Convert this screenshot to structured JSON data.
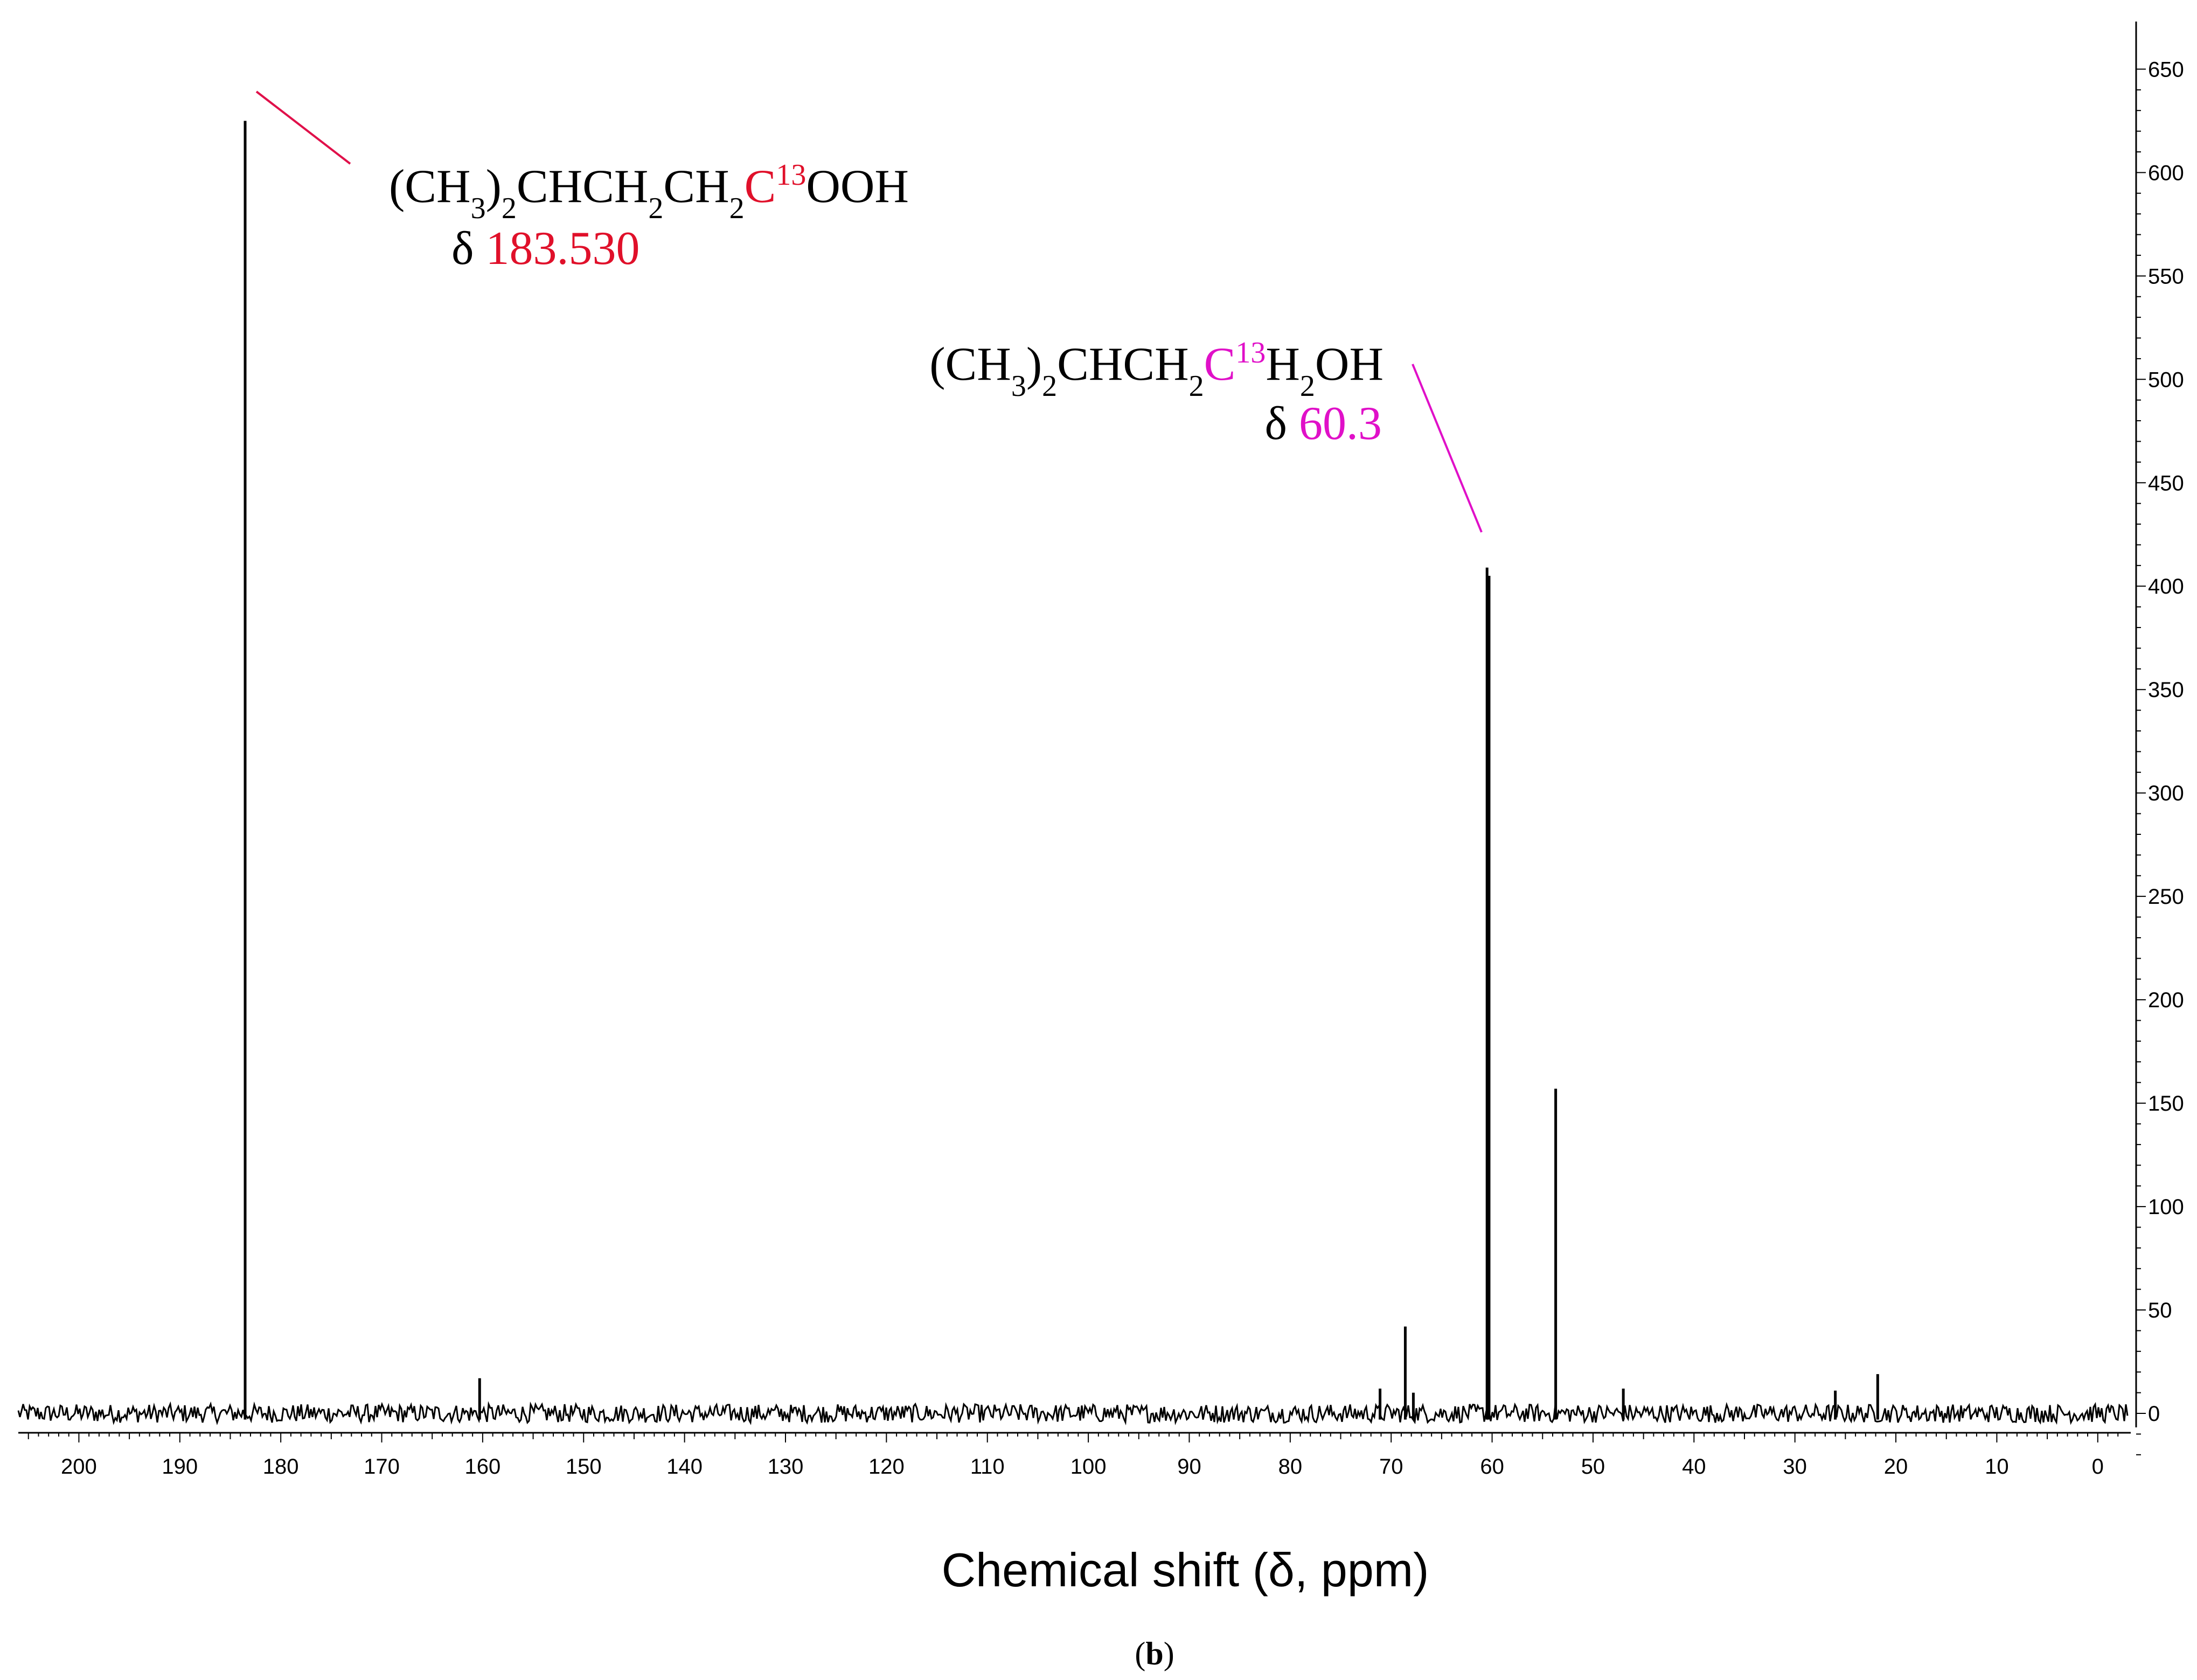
{
  "chart_data": {
    "type": "line",
    "xlabel": "Chemical shift (δ, ppm)",
    "ylabel": "",
    "xlim": [
      206,
      -3
    ],
    "ylim": [
      -25,
      660
    ],
    "x_ticks": [
      200,
      190,
      180,
      170,
      160,
      150,
      140,
      130,
      120,
      110,
      100,
      90,
      80,
      70,
      60,
      50,
      40,
      30,
      20,
      10,
      0
    ],
    "y_ticks": [
      650,
      600,
      550,
      500,
      450,
      400,
      350,
      300,
      250,
      200,
      150,
      100,
      50,
      0
    ],
    "baseline": 0,
    "series": [
      {
        "peaks": [
          {
            "x": 183.53,
            "y": 625
          },
          {
            "x": 160.3,
            "y": 17
          },
          {
            "x": 71.1,
            "y": 12
          },
          {
            "x": 68.6,
            "y": 42
          },
          {
            "x": 67.8,
            "y": 10
          },
          {
            "x": 60.5,
            "y": 409
          },
          {
            "x": 60.3,
            "y": 405
          },
          {
            "x": 53.7,
            "y": 157
          },
          {
            "x": 47.0,
            "y": 12
          },
          {
            "x": 26.0,
            "y": 11
          },
          {
            "x": 21.8,
            "y": 19
          }
        ]
      }
    ],
    "annotations": [
      {
        "formula": [
          "(CH",
          "3",
          ")",
          "2",
          "CHCH",
          "2",
          "CH",
          "2",
          "C",
          "13",
          "OOH"
        ],
        "shift_prefix": "δ ",
        "shift": "183.530",
        "highlight_color": "#e0102a"
      },
      {
        "formula": [
          "(CH",
          "3",
          ")",
          "2",
          "CHCH",
          "2",
          "C",
          "13",
          "H",
          "2",
          "OH"
        ],
        "shift_prefix": "δ ",
        "shift": "60.3",
        "highlight_color": "#e010c8"
      }
    ],
    "panel_label": {
      "open": "(",
      "letter": "b",
      "close": ")"
    },
    "colors": {
      "trace": "#000000",
      "leader_1": "#e0104a",
      "leader_2": "#e010c8"
    }
  }
}
